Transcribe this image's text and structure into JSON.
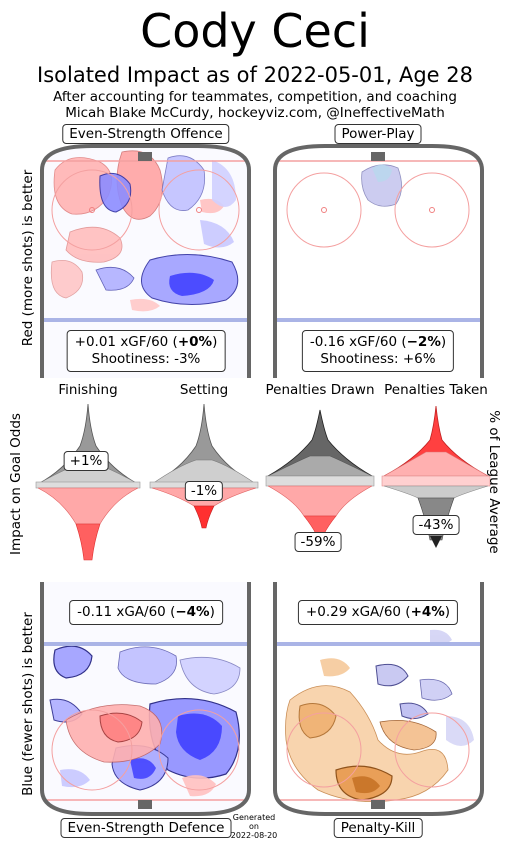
{
  "title": "Cody Ceci",
  "subtitle": "Isolated Impact as of 2022-05-01, Age 28",
  "note_line1": "After accounting for teammates, competition, and coaching",
  "note_line2": "Micah Blake McCurdy, hockeyviz.com, @IneffectiveMath",
  "left_axis_top": "Red (more shots) is better",
  "left_axis_middle": "Impact on Goal Odds",
  "left_axis_bottom": "Blue (fewer shots) is better",
  "right_axis_middle": "% of League Average",
  "generated": {
    "l1": "Generated",
    "l2": "on",
    "l3": "2022-08-20"
  },
  "colors": {
    "red": "#ff2b2b",
    "blue": "#2b2bff",
    "orange": "#f0a050",
    "grey": "#888888",
    "rink": "#666666"
  },
  "chart_data": [
    {
      "type": "heatmap",
      "panel": "Even-Strength Offence",
      "stat_value": "+0.01 xGF/60",
      "stat_pct": "+0%",
      "shootiness": "Shootiness: -3%"
    },
    {
      "type": "heatmap",
      "panel": "Power-Play",
      "stat_value": "-0.16 xGF/60",
      "stat_pct": "−2%",
      "shootiness": "Shootiness: +6%"
    },
    {
      "type": "violin",
      "columns": [
        {
          "label": "Finishing",
          "value_label": "+1%",
          "value": 1
        },
        {
          "label": "Setting",
          "value_label": "-1%",
          "value": -1
        },
        {
          "label": "Penalties Drawn",
          "value_label": "-59%",
          "value": -59
        },
        {
          "label": "Penalties Taken",
          "value_label": "-43%",
          "value": -43
        }
      ]
    },
    {
      "type": "heatmap",
      "panel": "Even-Strength Defence",
      "stat_value": "-0.11 xGA/60",
      "stat_pct": "−4%"
    },
    {
      "type": "heatmap",
      "panel": "Penalty-Kill",
      "stat_value": "+0.29 xGA/60",
      "stat_pct": "+4%"
    }
  ]
}
